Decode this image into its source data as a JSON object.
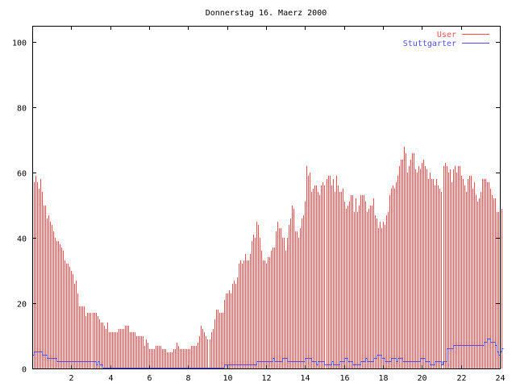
{
  "chart_data": {
    "type": "bar",
    "title": "Donnerstag 16. Maerz 2000",
    "xlabel": "",
    "ylabel": "",
    "xlim": [
      0,
      24
    ],
    "ylim": [
      0,
      105
    ],
    "x_step_hours": 0.0833333,
    "xticks": [
      2,
      4,
      6,
      8,
      10,
      12,
      14,
      16,
      18,
      20,
      22,
      24
    ],
    "xtick_labels": [
      "2",
      "4",
      "6",
      "8",
      "10",
      "12",
      "14",
      "16",
      "18",
      "20",
      "22",
      "24"
    ],
    "yticks": [
      0,
      20,
      40,
      60,
      80,
      100
    ],
    "ytick_labels": [
      "0",
      "20",
      "40",
      "60",
      "80",
      "100"
    ],
    "legend_position": "top-right",
    "series": [
      {
        "name": "User",
        "style": "impulses",
        "color": "#ff4d4d",
        "values": [
          57,
          57,
          59,
          57,
          55,
          58,
          54,
          50,
          50,
          46,
          47,
          45,
          44,
          42,
          40,
          39,
          39,
          38,
          37,
          36,
          33,
          32,
          32,
          31,
          30,
          29,
          26,
          27,
          23,
          19,
          19,
          19,
          19,
          16,
          17,
          17,
          17,
          17,
          17,
          17,
          16,
          15,
          14,
          14,
          13,
          12,
          14,
          11,
          11,
          11,
          11,
          11,
          11,
          12,
          12,
          12,
          12,
          13,
          13,
          13,
          11,
          11,
          11,
          11,
          10,
          10,
          10,
          10,
          10,
          7,
          9,
          8,
          6,
          6,
          6,
          6,
          7,
          7,
          7,
          7,
          6,
          6,
          6,
          5,
          5,
          5,
          5,
          6,
          6,
          8,
          7,
          6,
          6,
          6,
          6,
          6,
          6,
          6,
          7,
          7,
          7,
          7,
          8,
          10,
          13,
          12,
          11,
          10,
          9,
          9,
          11,
          12,
          15,
          18,
          18,
          17,
          17,
          17,
          21,
          23,
          23,
          24,
          23,
          26,
          27,
          26,
          28,
          32,
          33,
          32,
          33,
          35,
          33,
          33,
          35,
          39,
          41,
          40,
          45,
          44,
          40,
          36,
          33,
          33,
          32,
          34,
          34,
          36,
          37,
          37,
          42,
          45,
          43,
          43,
          40,
          40,
          36,
          40,
          44,
          46,
          50,
          49,
          42,
          42,
          40,
          43,
          46,
          47,
          51,
          62,
          59,
          60,
          54,
          55,
          56,
          56,
          54,
          53,
          56,
          57,
          56,
          58,
          59,
          59,
          56,
          58,
          54,
          59,
          56,
          54,
          54,
          55,
          51,
          49,
          50,
          51,
          53,
          53,
          48,
          52,
          48,
          50,
          53,
          53,
          53,
          51,
          48,
          49,
          50,
          50,
          52,
          47,
          46,
          43,
          45,
          43,
          45,
          44,
          47,
          48,
          53,
          55,
          56,
          55,
          57,
          59,
          62,
          64,
          64,
          68,
          66,
          60,
          62,
          64,
          66,
          66,
          61,
          60,
          62,
          61,
          63,
          64,
          62,
          61,
          58,
          60,
          58,
          58,
          56,
          58,
          56,
          55,
          54,
          62,
          63,
          62,
          60,
          61,
          57,
          61,
          62,
          60,
          62,
          62,
          59,
          58,
          56,
          54,
          58,
          59,
          59,
          55,
          57,
          53,
          51,
          52,
          54,
          58,
          58,
          58,
          57,
          57,
          55,
          53,
          52,
          52,
          48,
          48,
          51,
          49
        ]
      },
      {
        "name": "Stuttgarter",
        "style": "steps",
        "color": "#4d4dff",
        "values": [
          4,
          5,
          5,
          5,
          5,
          5,
          4,
          4,
          4,
          3,
          3,
          3,
          3,
          3,
          3,
          2,
          2,
          2,
          2,
          2,
          2,
          2,
          2,
          2,
          2,
          2,
          2,
          2,
          2,
          2,
          2,
          2,
          2,
          2,
          2,
          2,
          2,
          2,
          2,
          1,
          2,
          1,
          1,
          0,
          0,
          0,
          0,
          0,
          0,
          0,
          0,
          0,
          0,
          0,
          0,
          0,
          0,
          0,
          0,
          0,
          0,
          0,
          0,
          0,
          0,
          0,
          0,
          0,
          0,
          0,
          0,
          0,
          0,
          0,
          0,
          0,
          0,
          0,
          0,
          0,
          0,
          0,
          0,
          0,
          0,
          0,
          0,
          0,
          0,
          0,
          0,
          0,
          0,
          0,
          0,
          0,
          0,
          0,
          0,
          0,
          0,
          0,
          0,
          0,
          0,
          0,
          0,
          0,
          0,
          0,
          0,
          0,
          0,
          0,
          0,
          0,
          0,
          0,
          1,
          1,
          1,
          1,
          1,
          1,
          1,
          1,
          1,
          1,
          1,
          1,
          1,
          1,
          1,
          1,
          1,
          1,
          1,
          1,
          2,
          2,
          2,
          2,
          2,
          2,
          2,
          2,
          2,
          2,
          3,
          2,
          2,
          2,
          2,
          2,
          3,
          3,
          3,
          2,
          2,
          2,
          2,
          2,
          2,
          2,
          2,
          2,
          2,
          2,
          3,
          3,
          3,
          3,
          2,
          2,
          2,
          1,
          2,
          2,
          2,
          2,
          1,
          1,
          1,
          1,
          2,
          1,
          1,
          1,
          1,
          2,
          2,
          2,
          3,
          3,
          2,
          2,
          2,
          1,
          1,
          1,
          1,
          1,
          2,
          2,
          2,
          3,
          2,
          2,
          2,
          2,
          3,
          3,
          4,
          4,
          4,
          3,
          3,
          2,
          2,
          2,
          2,
          3,
          3,
          3,
          2,
          3,
          3,
          3,
          2,
          2,
          2,
          2,
          2,
          2,
          2,
          2,
          2,
          2,
          2,
          3,
          3,
          3,
          2,
          2,
          2,
          1,
          1,
          1,
          2,
          2,
          2,
          2,
          1,
          2,
          2,
          6,
          6,
          6,
          6,
          7,
          7,
          7,
          7,
          7,
          7,
          7,
          7,
          7,
          7,
          7,
          7,
          7,
          7,
          7,
          7,
          7,
          7,
          7,
          8,
          8,
          9,
          9,
          8,
          8,
          8,
          7,
          5,
          4,
          5,
          6
        ]
      }
    ]
  }
}
